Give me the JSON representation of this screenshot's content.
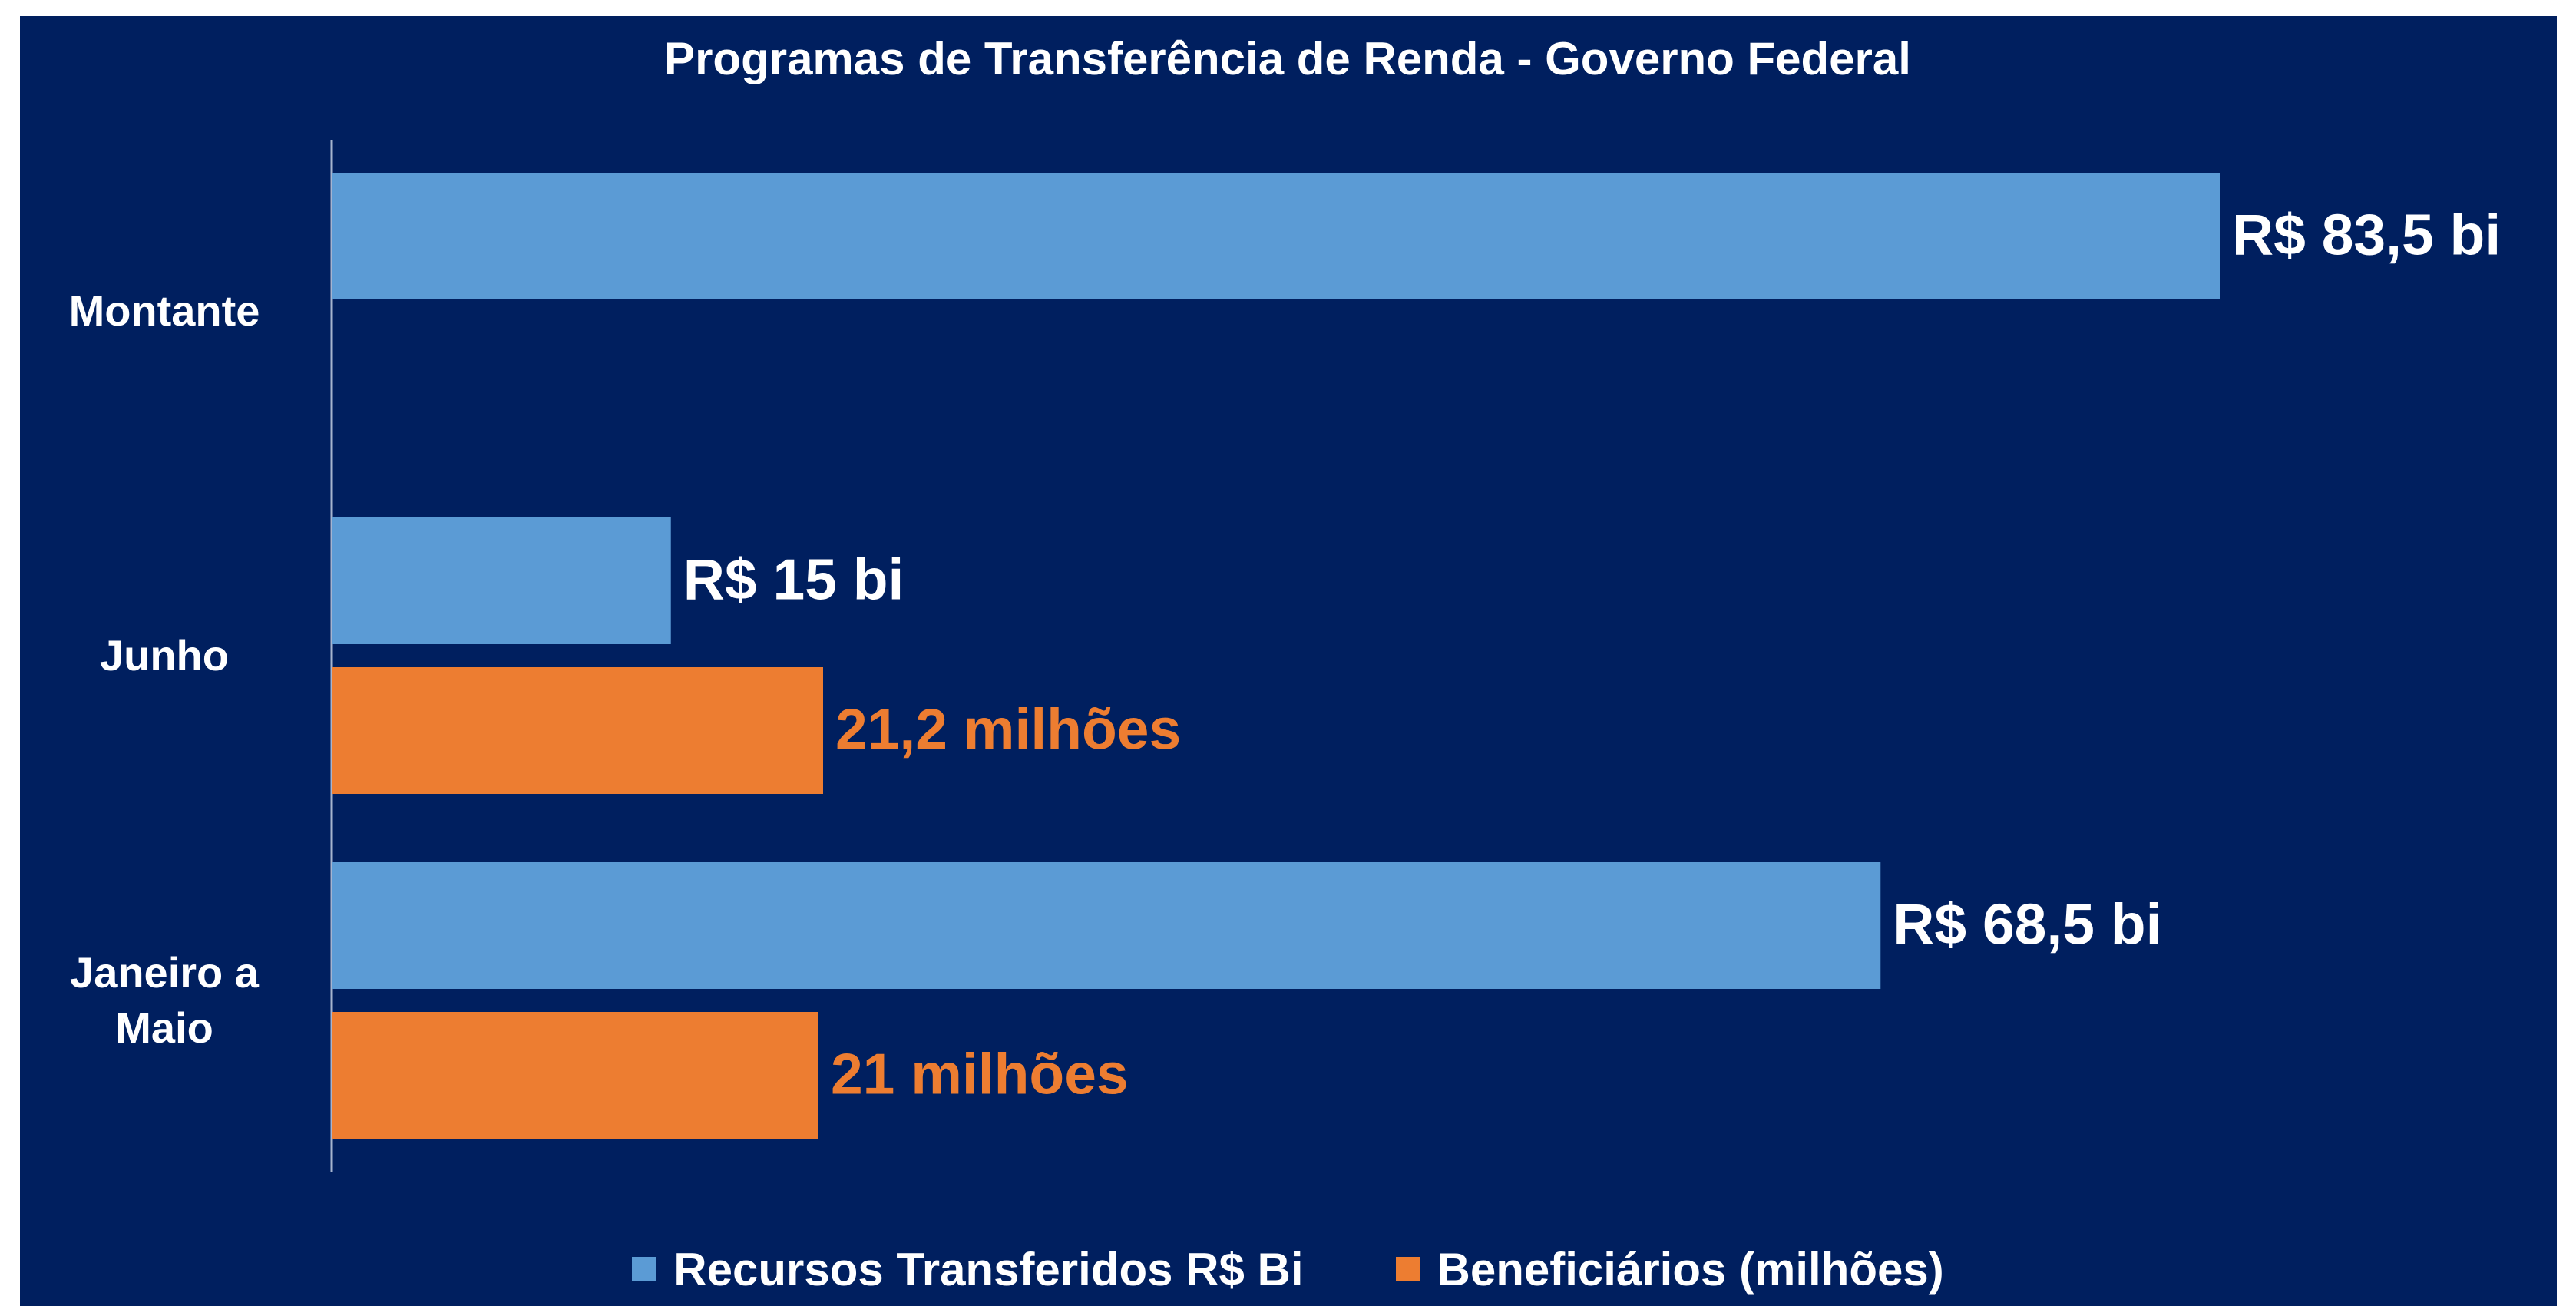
{
  "chart_data": {
    "type": "barh",
    "title": "Programas de Transferência de Renda - Governo Federal",
    "categories": [
      "Montante",
      "Junho",
      "Janeiro a Maio"
    ],
    "series": [
      {
        "name": "Recursos Transferidos R$ Bi",
        "color": "#5b9bd5",
        "values": [
          83.5,
          15,
          68.5
        ],
        "value_labels": [
          "R$ 83,5 bi",
          "R$ 15 bi",
          "R$ 68,5 bi"
        ],
        "label_color": "#ffffff"
      },
      {
        "name": "Beneficiários (milhões)",
        "color": "#ed7d31",
        "values": [
          null,
          21.2,
          21
        ],
        "value_labels": [
          null,
          "21,2 milhões",
          "21 milhões"
        ],
        "label_color": "#ed7d31"
      }
    ],
    "legend": "bottom"
  }
}
